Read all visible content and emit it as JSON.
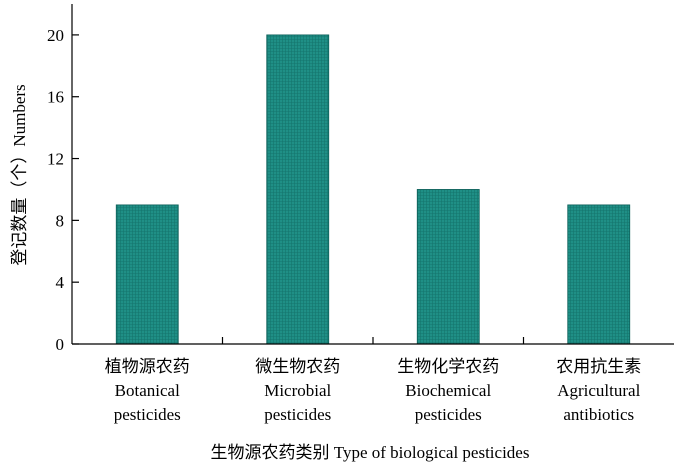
{
  "chart_data": {
    "type": "bar",
    "categories": [
      {
        "zh": "植物源农药",
        "en1": "Botanical",
        "en2": "pesticides"
      },
      {
        "zh": "微生物农药",
        "en1": "Microbial",
        "en2": "pesticides"
      },
      {
        "zh": "生物化学农药",
        "en1": "Biochemical",
        "en2": "pesticides"
      },
      {
        "zh": "农用抗生素",
        "en1": "Agricultural",
        "en2": "antibiotics"
      }
    ],
    "values": [
      9,
      20,
      10,
      9
    ],
    "xlabel": "生物源农药类别 Type of biological pesticides",
    "ylabel": "登记数量（个）Numbers",
    "ylim": [
      0,
      22
    ],
    "yticks": [
      0,
      4,
      8,
      12,
      16,
      20
    ],
    "bar_color": "#1f8f86",
    "grid": false
  }
}
